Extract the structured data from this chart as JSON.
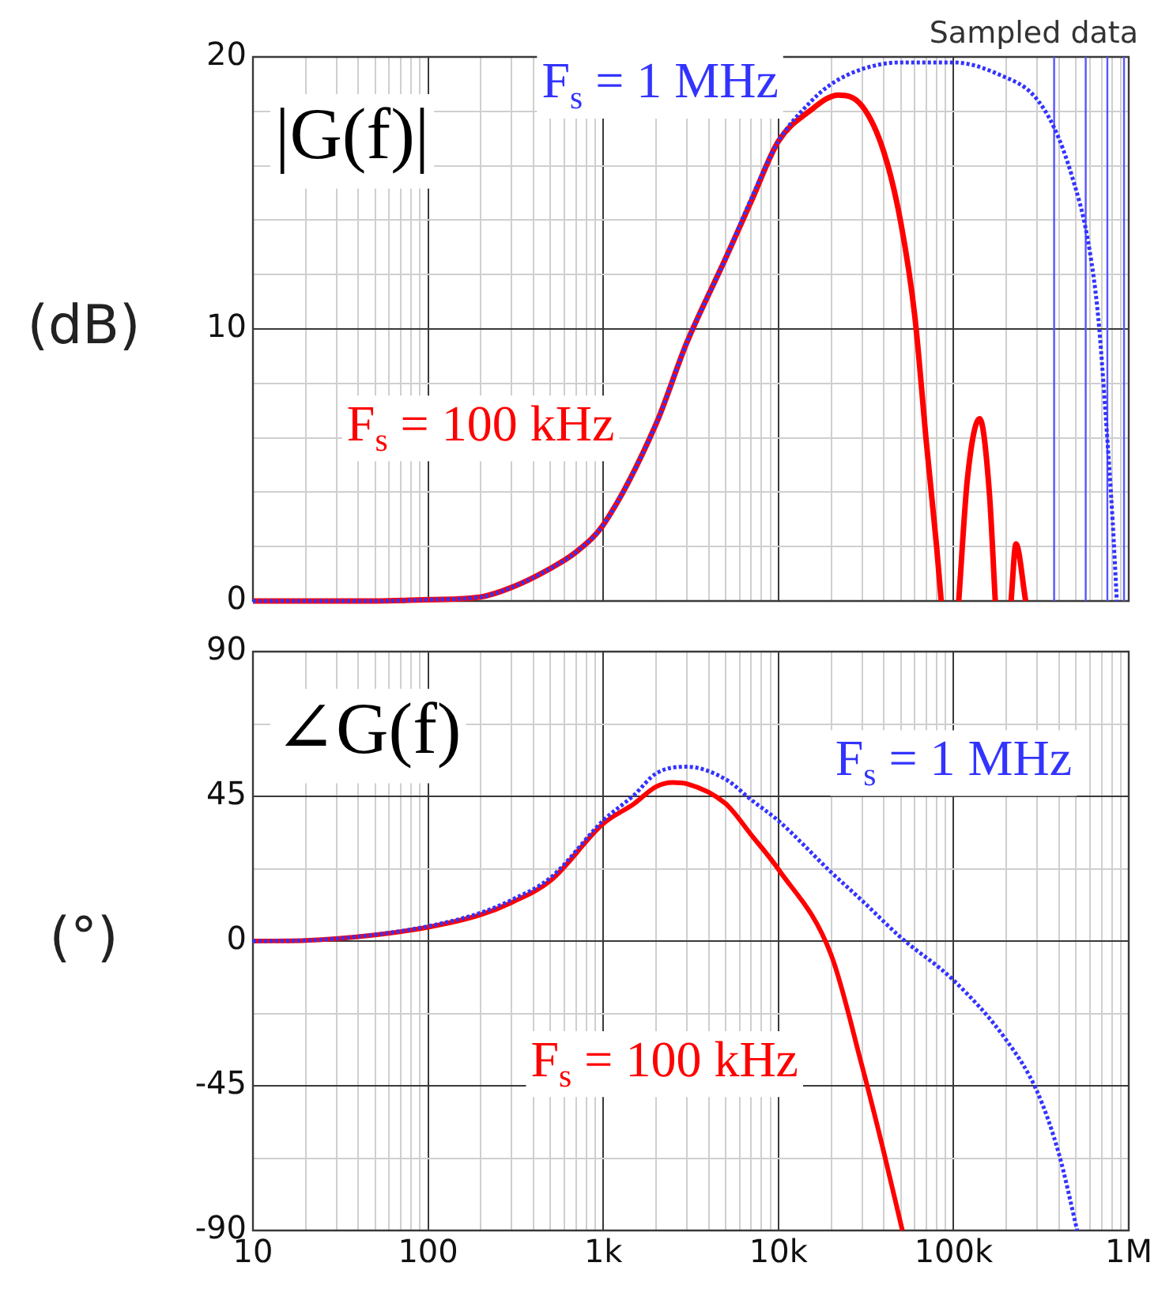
{
  "chart_data": [
    {
      "type": "line",
      "ylabel": "(dB)",
      "annotations": [
        "|G(f)|",
        "Sampled data"
      ],
      "log": "x",
      "grid": true,
      "legend": false,
      "marker": "none",
      "tick_labels": "y",
      "xlim": [
        10,
        1000000
      ],
      "xticks": [
        {
          "value": 20,
          "label": null
        },
        {
          "value": 30,
          "label": null
        },
        {
          "value": 40,
          "label": null
        },
        {
          "value": 50,
          "label": null
        },
        {
          "value": 60,
          "label": null
        },
        {
          "value": 70,
          "label": null
        },
        {
          "value": 80,
          "label": null
        },
        {
          "value": 90,
          "label": null
        },
        100,
        {
          "value": 200,
          "label": null
        },
        {
          "value": 300,
          "label": null
        },
        {
          "value": 400,
          "label": null
        },
        {
          "value": 500,
          "label": null
        },
        {
          "value": 600,
          "label": null
        },
        {
          "value": 700,
          "label": null
        },
        {
          "value": 800,
          "label": null
        },
        {
          "value": 900,
          "label": null
        },
        1000,
        {
          "value": 2000,
          "label": null
        },
        {
          "value": 3000,
          "label": null
        },
        {
          "value": 4000,
          "label": null
        },
        {
          "value": 5000,
          "label": null
        },
        {
          "value": 6000,
          "label": null
        },
        {
          "value": 7000,
          "label": null
        },
        {
          "value": 8000,
          "label": null
        },
        {
          "value": 9000,
          "label": null
        },
        10000,
        {
          "value": 20000,
          "label": null
        },
        {
          "value": 30000,
          "label": null
        },
        {
          "value": 40000,
          "label": null
        },
        {
          "value": 50000,
          "label": null
        },
        {
          "value": 60000,
          "label": null
        },
        {
          "value": 70000,
          "label": null
        },
        {
          "value": 80000,
          "label": null
        },
        {
          "value": 90000,
          "label": null
        },
        100000,
        {
          "value": 200000,
          "label": null
        },
        {
          "value": 300000,
          "label": null
        },
        {
          "value": 400000,
          "label": null
        },
        {
          "value": 500000,
          "label": null
        },
        {
          "value": 600000,
          "label": null
        },
        {
          "value": 700000,
          "label": null
        },
        {
          "value": 800000,
          "label": null
        },
        {
          "value": 900000,
          "label": null
        }
      ],
      "ylim": [
        0,
        20
      ],
      "yticks": [
        0,
        {
          "value": 2,
          "label": null
        },
        {
          "value": 4,
          "label": null
        },
        {
          "value": 6,
          "label": null
        },
        {
          "value": 8,
          "label": null
        },
        10,
        {
          "value": 12,
          "label": null
        },
        {
          "value": 14,
          "label": null
        },
        {
          "value": 16,
          "label": null
        },
        {
          "value": 18,
          "label": null
        },
        20
      ],
      "ref_lines": [
        {
          "axis": "x",
          "value": 375000,
          "color": "#5555ff"
        },
        {
          "axis": "x",
          "value": 568000,
          "color": "#5555ff"
        },
        {
          "axis": "x",
          "value": 755000,
          "color": "#5555ff"
        },
        {
          "axis": "x",
          "value": 940000,
          "color": "#5555ff"
        }
      ],
      "series": [
        {
          "name": "F$_{s}$ = 1 MHz",
          "color": "#3333ff",
          "line_style": "dotted",
          "x": [
            10,
            50,
            100,
            200,
            300,
            500,
            700,
            1000,
            2000,
            3000,
            5000,
            7000,
            10000,
            15000,
            20000,
            30000,
            50000,
            100000,
            190000,
            285000,
            375000,
            475000,
            583000,
            668000,
            741000,
            810000,
            855000
          ],
          "values": [
            0,
            0,
            0.05,
            0.15,
            0.5,
            1.2,
            1.8,
            2.8,
            6.5,
            9.5,
            12.6,
            14.8,
            16.9,
            18.3,
            19.0,
            19.55,
            19.8,
            19.8,
            19.3,
            18.6,
            17.4,
            15.6,
            13.3,
            10.5,
            6.7,
            2.9,
            0
          ]
        },
        {
          "name": "F$_{s}$ = 100 kHz",
          "color": "#ff0000",
          "line_style": "solid",
          "x": [
            10,
            50,
            100,
            200,
            300,
            500,
            700,
            1000,
            2000,
            3000,
            5000,
            7000,
            10000,
            15000,
            22000,
            30000,
            40000,
            50000,
            60000,
            70000,
            80000,
            85000,
            96000,
            107000,
            120000,
            141000,
            160000,
            173000,
            190000,
            213000,
            227000,
            258000
          ],
          "values": [
            0,
            0,
            0.05,
            0.15,
            0.5,
            1.2,
            1.8,
            2.8,
            6.5,
            9.5,
            12.6,
            14.7,
            16.9,
            18.0,
            18.6,
            18.2,
            16.5,
            13.9,
            10.5,
            5.8,
            2.0,
            0,
            null,
            0,
            4.5,
            6.7,
            4.0,
            0,
            null,
            0,
            2.1,
            0
          ]
        }
      ]
    },
    {
      "type": "line",
      "ylabel": "(°)",
      "annotations": [
        "∠G(f)"
      ],
      "log": "x",
      "grid": true,
      "legend": false,
      "marker": "none",
      "xlim": [
        10,
        1000000
      ],
      "xticks": [
        10,
        {
          "value": 20,
          "label": null
        },
        {
          "value": 30,
          "label": null
        },
        {
          "value": 40,
          "label": null
        },
        {
          "value": 50,
          "label": null
        },
        {
          "value": 60,
          "label": null
        },
        {
          "value": 70,
          "label": null
        },
        {
          "value": 80,
          "label": null
        },
        {
          "value": 90,
          "label": null
        },
        100,
        {
          "value": 200,
          "label": null
        },
        {
          "value": 300,
          "label": null
        },
        {
          "value": 400,
          "label": null
        },
        {
          "value": 500,
          "label": null
        },
        {
          "value": 600,
          "label": null
        },
        {
          "value": 700,
          "label": null
        },
        {
          "value": 800,
          "label": null
        },
        {
          "value": 900,
          "label": null
        },
        {
          "value": 1000,
          "label": "1k"
        },
        {
          "value": 2000,
          "label": null
        },
        {
          "value": 3000,
          "label": null
        },
        {
          "value": 4000,
          "label": null
        },
        {
          "value": 5000,
          "label": null
        },
        {
          "value": 6000,
          "label": null
        },
        {
          "value": 7000,
          "label": null
        },
        {
          "value": 8000,
          "label": null
        },
        {
          "value": 9000,
          "label": null
        },
        {
          "value": 10000,
          "label": "10k"
        },
        {
          "value": 20000,
          "label": null
        },
        {
          "value": 30000,
          "label": null
        },
        {
          "value": 40000,
          "label": null
        },
        {
          "value": 50000,
          "label": null
        },
        {
          "value": 60000,
          "label": null
        },
        {
          "value": 70000,
          "label": null
        },
        {
          "value": 80000,
          "label": null
        },
        {
          "value": 90000,
          "label": null
        },
        {
          "value": 100000,
          "label": "100k"
        },
        {
          "value": 200000,
          "label": null
        },
        {
          "value": 300000,
          "label": null
        },
        {
          "value": 400000,
          "label": null
        },
        {
          "value": 500000,
          "label": null
        },
        {
          "value": 600000,
          "label": null
        },
        {
          "value": 700000,
          "label": null
        },
        {
          "value": 800000,
          "label": null
        },
        {
          "value": 900000,
          "label": null
        },
        {
          "value": 1000000,
          "label": "1M"
        }
      ],
      "ylim": [
        -90,
        90
      ],
      "yticks": [
        -90,
        {
          "value": -67.5,
          "label": null
        },
        -45,
        {
          "value": -22.5,
          "label": null
        },
        0,
        {
          "value": 22.5,
          "label": null
        },
        45,
        {
          "value": 67.5,
          "label": null
        },
        90
      ],
      "series": [
        {
          "name": "F$_{s}$ = 1 MHz",
          "color": "#3333ff",
          "line_style": "dotted",
          "x": [
            10,
            20,
            50,
            100,
            200,
            300,
            500,
            1000,
            1500,
            2000,
            3000,
            5000,
            7000,
            10000,
            20000,
            30000,
            50000,
            100000,
            200000,
            300000,
            400000,
            508000
          ],
          "values": [
            0,
            0.2,
            2.0,
            4.6,
            8.8,
            12.8,
            19.7,
            37.5,
            45.4,
            52.1,
            54.2,
            50.3,
            43.9,
            37.4,
            21.4,
            12.6,
            1.1,
            -12.2,
            -30.8,
            -46.8,
            -66.3,
            -90
          ]
        },
        {
          "name": "F$_{s}$ = 100 kHz",
          "color": "#ff0000",
          "line_style": "solid",
          "x": [
            10,
            20,
            50,
            100,
            200,
            300,
            500,
            1000,
            1500,
            2000,
            2500,
            3000,
            5000,
            7000,
            10000,
            20000,
            30000,
            40000,
            51000
          ],
          "values": [
            0,
            0.2,
            1.9,
            4.3,
            8.2,
            12.0,
            18.8,
            36.5,
            42.7,
            48.0,
            49.3,
            48.9,
            42.7,
            33.0,
            22.3,
            -4.3,
            -38.8,
            -65.7,
            -90
          ]
        }
      ]
    }
  ]
}
